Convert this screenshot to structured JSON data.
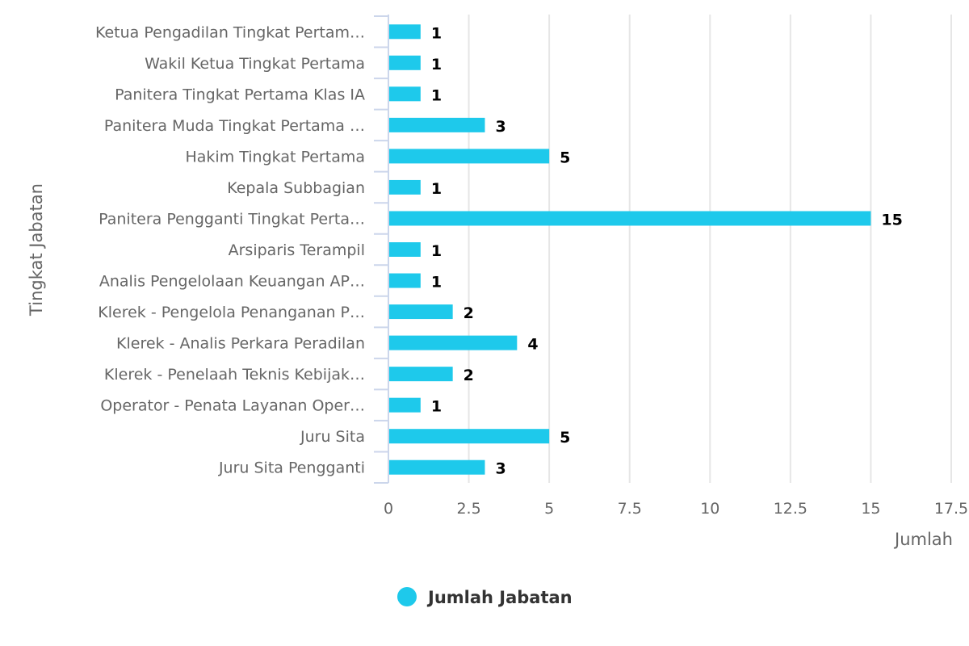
{
  "chart_data": {
    "type": "bar",
    "orientation": "horizontal",
    "categories": [
      "Ketua Pengadilan Tingkat Pertam…",
      "Wakil Ketua Tingkat Pertama",
      "Panitera Tingkat Pertama Klas IA",
      "Panitera Muda Tingkat Pertama …",
      "Hakim Tingkat Pertama",
      "Kepala Subbagian",
      "Panitera Pengganti Tingkat Perta…",
      "Arsiparis Terampil",
      "Analis Pengelolaan Keuangan AP…",
      "Klerek - Pengelola Penanganan P…",
      "Klerek - Analis Perkara Peradilan",
      "Klerek - Penelaah Teknis Kebijak…",
      "Operator - Penata Layanan Oper…",
      "Juru Sita",
      "Juru Sita Pengganti"
    ],
    "series": [
      {
        "name": "Jumlah Jabatan",
        "values": [
          1,
          1,
          1,
          3,
          5,
          1,
          15,
          1,
          1,
          2,
          4,
          2,
          1,
          5,
          3
        ],
        "color": "#1ec9eb"
      }
    ],
    "xaxis": {
      "title": "Jumlah",
      "range": [
        0,
        17.5
      ],
      "ticks": [
        0,
        2.5,
        5,
        7.5,
        10,
        12.5,
        15,
        17.5
      ],
      "tick_labels": [
        "0",
        "2.5",
        "5",
        "7.5",
        "10",
        "12.5",
        "15",
        "17.5"
      ]
    },
    "yaxis": {
      "title": "Tingkat Jabatan"
    },
    "grid": true,
    "data_labels": true,
    "legend": {
      "position": "bottom-center",
      "entries": [
        "Jumlah Jabatan"
      ]
    }
  }
}
